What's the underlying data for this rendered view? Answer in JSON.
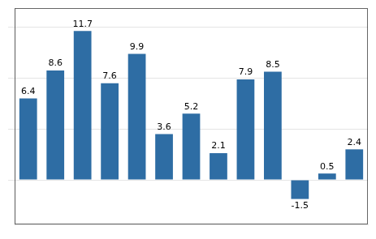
{
  "chart_data": {
    "type": "bar",
    "categories": [
      null,
      null,
      null,
      null,
      null,
      null,
      null,
      null,
      null,
      null,
      null,
      null,
      null
    ],
    "values": [
      6.4,
      8.6,
      11.7,
      7.6,
      9.9,
      3.6,
      5.2,
      2.1,
      7.9,
      8.5,
      -1.5,
      0.5,
      2.4
    ],
    "color": "#2E6DA4",
    "ylim": [
      -3.5,
      13.5
    ],
    "yticks": [
      0,
      4,
      8,
      12
    ],
    "grid": true,
    "data_labels": true,
    "tick_labels": false
  }
}
